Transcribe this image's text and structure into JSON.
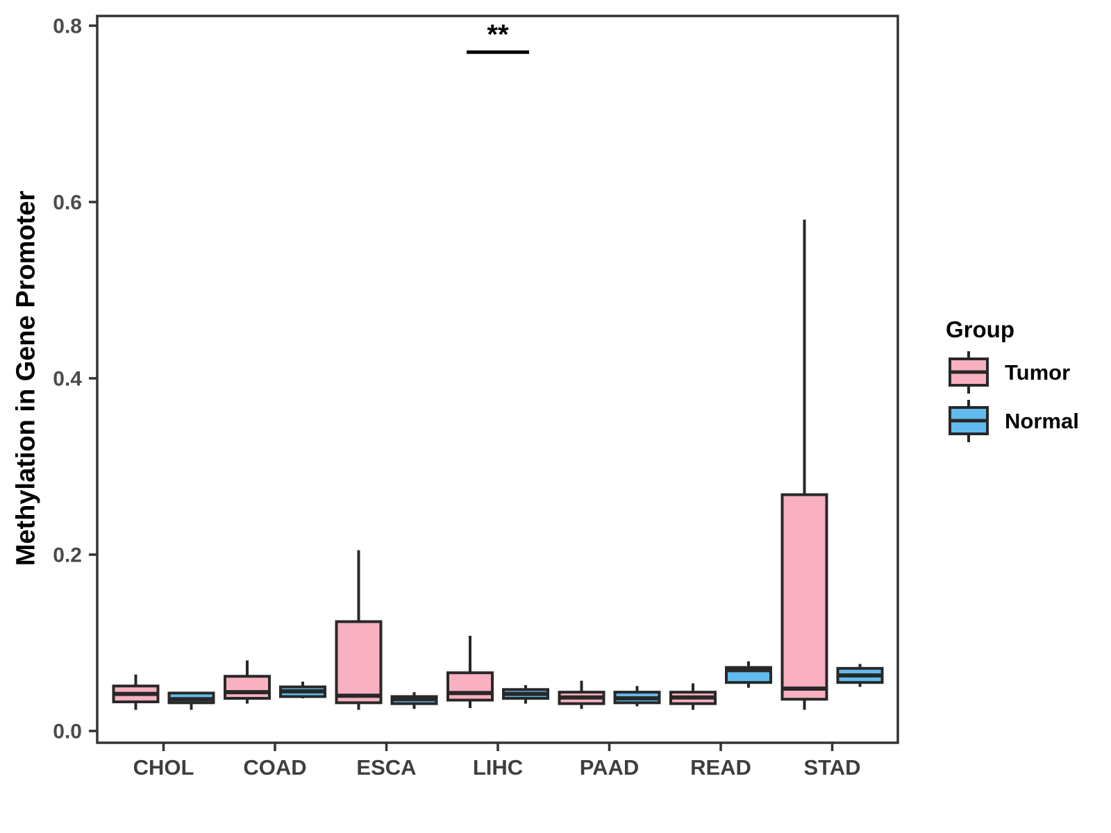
{
  "chart_data": {
    "type": "boxplot",
    "title": "",
    "xlabel": "",
    "ylabel": "Methylation in Gene Promoter",
    "ylim": [
      0,
      0.8
    ],
    "yticks": [
      "0.0",
      "0.2",
      "0.4",
      "0.6",
      "0.8"
    ],
    "grid": false,
    "categories": [
      "CHOL",
      "COAD",
      "ESCA",
      "LIHC",
      "PAAD",
      "READ",
      "STAD"
    ],
    "legend": {
      "title": "Group",
      "position": "right"
    },
    "groups": [
      {
        "name": "Tumor",
        "color": "#F9B0C1"
      },
      {
        "name": "Normal",
        "color": "#61BBEE"
      }
    ],
    "series": [
      {
        "group": "Tumor",
        "boxes": [
          {
            "category": "CHOL",
            "min": 0.024,
            "q1": 0.033,
            "median": 0.042,
            "q3": 0.051,
            "max": 0.064
          },
          {
            "category": "COAD",
            "min": 0.031,
            "q1": 0.037,
            "median": 0.044,
            "q3": 0.062,
            "max": 0.08
          },
          {
            "category": "ESCA",
            "min": 0.024,
            "q1": 0.032,
            "median": 0.04,
            "q3": 0.124,
            "max": 0.205
          },
          {
            "category": "LIHC",
            "min": 0.026,
            "q1": 0.035,
            "median": 0.043,
            "q3": 0.066,
            "max": 0.108
          },
          {
            "category": "PAAD",
            "min": 0.025,
            "q1": 0.031,
            "median": 0.038,
            "q3": 0.044,
            "max": 0.057
          },
          {
            "category": "READ",
            "min": 0.024,
            "q1": 0.031,
            "median": 0.038,
            "q3": 0.044,
            "max": 0.054
          },
          {
            "category": "STAD",
            "min": 0.024,
            "q1": 0.036,
            "median": 0.048,
            "q3": 0.268,
            "max": 0.58
          }
        ]
      },
      {
        "group": "Normal",
        "boxes": [
          {
            "category": "CHOL",
            "min": 0.024,
            "q1": 0.032,
            "median": 0.036,
            "q3": 0.043,
            "max": 0.043
          },
          {
            "category": "COAD",
            "min": 0.037,
            "q1": 0.039,
            "median": 0.045,
            "q3": 0.05,
            "max": 0.056
          },
          {
            "category": "ESCA",
            "min": 0.025,
            "q1": 0.031,
            "median": 0.036,
            "q3": 0.039,
            "max": 0.044
          },
          {
            "category": "LIHC",
            "min": 0.031,
            "q1": 0.037,
            "median": 0.042,
            "q3": 0.047,
            "max": 0.052
          },
          {
            "category": "PAAD",
            "min": 0.028,
            "q1": 0.032,
            "median": 0.037,
            "q3": 0.044,
            "max": 0.051
          },
          {
            "category": "READ",
            "min": 0.049,
            "q1": 0.055,
            "median": 0.069,
            "q3": 0.072,
            "max": 0.079
          },
          {
            "category": "STAD",
            "min": 0.05,
            "q1": 0.055,
            "median": 0.063,
            "q3": 0.071,
            "max": 0.076
          }
        ]
      }
    ],
    "annotation": {
      "label": "**",
      "category": "LIHC",
      "y": 0.77
    },
    "colors": {
      "tumor_fill": "#F9B0C1",
      "normal_fill": "#61BBEE",
      "box_border": "#282828",
      "panel_border": "#333333",
      "tick_text": "#4A4A4A",
      "category_text": "#3E3E3E"
    }
  }
}
